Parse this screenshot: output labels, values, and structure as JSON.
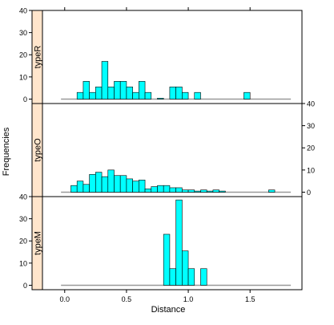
{
  "chart_data": {
    "type": "bar",
    "layout": "lattice histogram, three stacked panels with strips on the left",
    "xlabel": "Distance",
    "ylabel": "Frequencies",
    "xlim": [
      -0.18,
      1.92
    ],
    "ylim": [
      -2,
      40
    ],
    "x_ticks": [
      {
        "value": 0.0,
        "label": "0.0"
      },
      {
        "value": 0.5,
        "label": "0.5"
      },
      {
        "value": 1.0,
        "label": "1.0"
      },
      {
        "value": 1.5,
        "label": "1.5"
      }
    ],
    "y_ticks": [
      {
        "value": 0,
        "label": "0"
      },
      {
        "value": 10,
        "label": "10"
      },
      {
        "value": 20,
        "label": "20"
      },
      {
        "value": 30,
        "label": "30"
      },
      {
        "value": 40,
        "label": "40"
      }
    ],
    "bin_width": 0.05,
    "baseline_range": [
      -0.03,
      1.83
    ],
    "colors": {
      "bar_fill": "#00ffff",
      "bar_stroke": "#000000",
      "strip": "#ffe5cc",
      "baseline": "#999999",
      "frame": "#000000"
    },
    "panels": [
      {
        "strip_label": "typeR",
        "y_axis_side": "left",
        "bins": [
          {
            "x0": 0.1,
            "value": 3
          },
          {
            "x0": 0.15,
            "value": 8
          },
          {
            "x0": 0.2,
            "value": 3
          },
          {
            "x0": 0.25,
            "value": 5.5
          },
          {
            "x0": 0.3,
            "value": 17
          },
          {
            "x0": 0.35,
            "value": 5.5
          },
          {
            "x0": 0.4,
            "value": 8
          },
          {
            "x0": 0.45,
            "value": 8
          },
          {
            "x0": 0.5,
            "value": 5.5
          },
          {
            "x0": 0.55,
            "value": 3
          },
          {
            "x0": 0.6,
            "value": 8
          },
          {
            "x0": 0.65,
            "value": 3
          },
          {
            "x0": 0.75,
            "value": 0.4
          },
          {
            "x0": 0.85,
            "value": 5.5
          },
          {
            "x0": 0.9,
            "value": 5.5
          },
          {
            "x0": 0.95,
            "value": 3
          },
          {
            "x0": 1.05,
            "value": 3
          },
          {
            "x0": 1.45,
            "value": 3
          }
        ]
      },
      {
        "strip_label": "typeO",
        "y_axis_side": "right",
        "bins": [
          {
            "x0": 0.05,
            "value": 3
          },
          {
            "x0": 0.1,
            "value": 5
          },
          {
            "x0": 0.15,
            "value": 3.5
          },
          {
            "x0": 0.2,
            "value": 8
          },
          {
            "x0": 0.25,
            "value": 9
          },
          {
            "x0": 0.3,
            "value": 7
          },
          {
            "x0": 0.35,
            "value": 10
          },
          {
            "x0": 0.4,
            "value": 7.5
          },
          {
            "x0": 0.45,
            "value": 7.5
          },
          {
            "x0": 0.5,
            "value": 6
          },
          {
            "x0": 0.55,
            "value": 5
          },
          {
            "x0": 0.6,
            "value": 5.5
          },
          {
            "x0": 0.65,
            "value": 1.5
          },
          {
            "x0": 0.7,
            "value": 2.5
          },
          {
            "x0": 0.75,
            "value": 3
          },
          {
            "x0": 0.8,
            "value": 3
          },
          {
            "x0": 0.85,
            "value": 2
          },
          {
            "x0": 0.9,
            "value": 2
          },
          {
            "x0": 0.95,
            "value": 1
          },
          {
            "x0": 1.0,
            "value": 1
          },
          {
            "x0": 1.05,
            "value": 0.5
          },
          {
            "x0": 1.1,
            "value": 1
          },
          {
            "x0": 1.15,
            "value": 0.5
          },
          {
            "x0": 1.2,
            "value": 1
          },
          {
            "x0": 1.25,
            "value": 0.5
          },
          {
            "x0": 1.65,
            "value": 1
          }
        ]
      },
      {
        "strip_label": "typeM",
        "y_axis_side": "left",
        "bins": [
          {
            "x0": 0.8,
            "value": 23
          },
          {
            "x0": 0.85,
            "value": 7.5
          },
          {
            "x0": 0.9,
            "value": 38.5
          },
          {
            "x0": 0.95,
            "value": 15.5
          },
          {
            "x0": 1.0,
            "value": 7.5
          },
          {
            "x0": 1.1,
            "value": 7.5
          }
        ]
      }
    ]
  }
}
